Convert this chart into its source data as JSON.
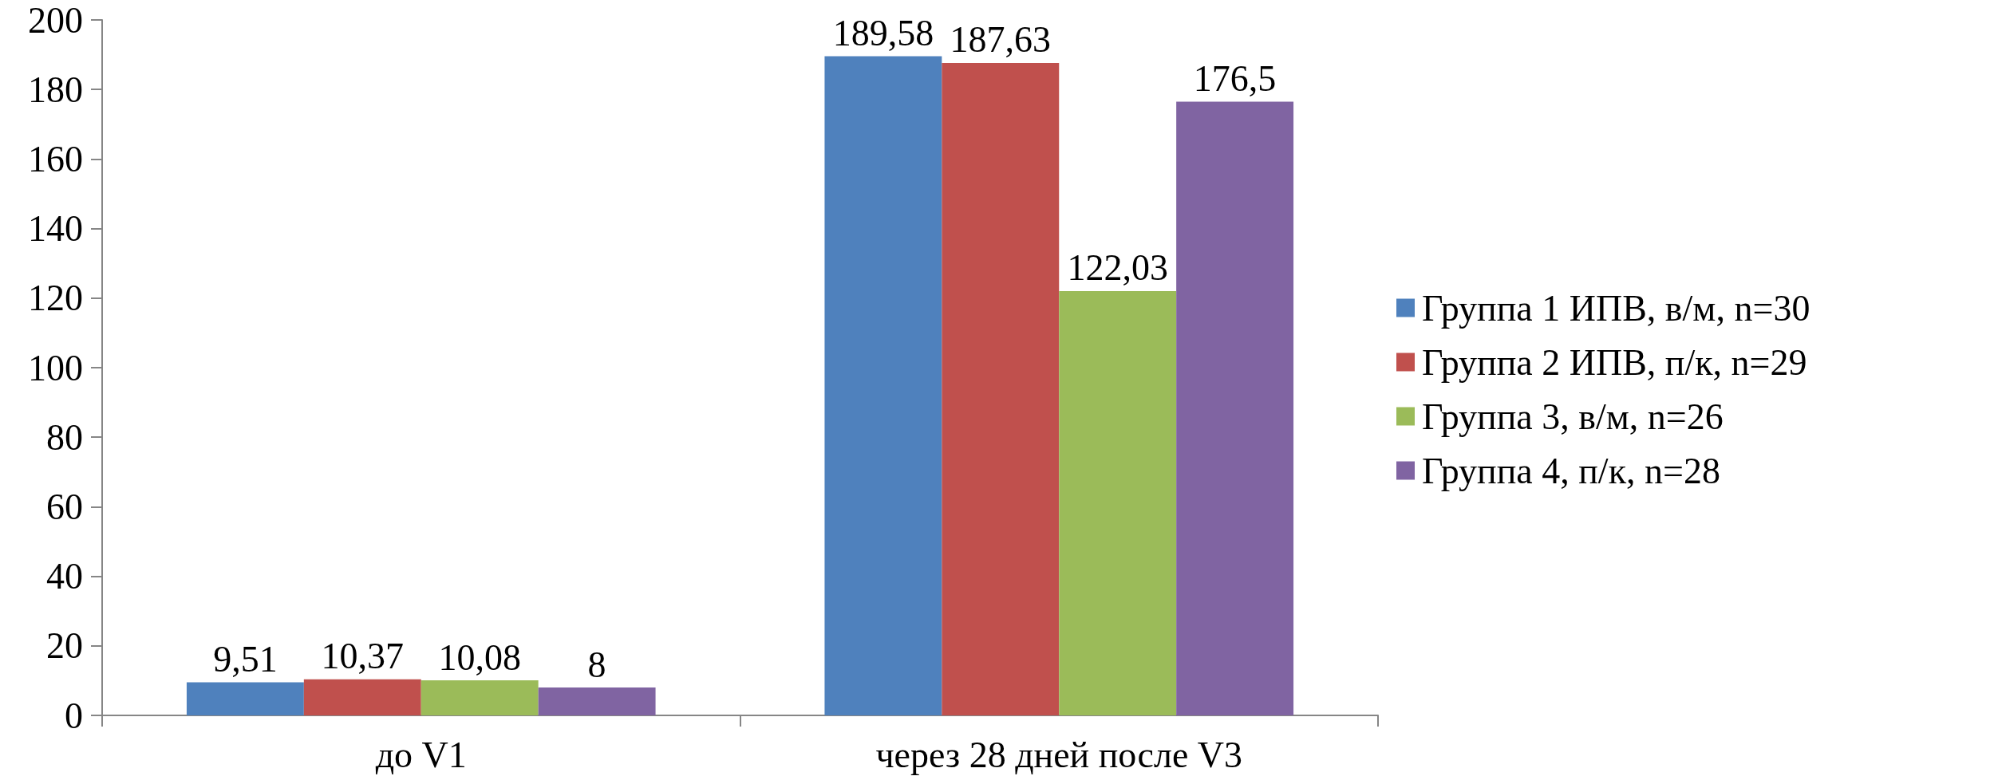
{
  "chart_data": {
    "type": "bar",
    "categories": [
      "до V1",
      "через 28 дней после V3"
    ],
    "series": [
      {
        "name": "Группа 1 ИПВ, в/м, n=30",
        "color": "#4f81bd",
        "values": [
          9.51,
          189.58
        ],
        "value_labels": [
          "9,51",
          "189,58"
        ]
      },
      {
        "name": "Группа 2 ИПВ, п/к, n=29",
        "color": "#c0504d",
        "values": [
          10.37,
          187.63
        ],
        "value_labels": [
          "10,37",
          "187,63"
        ]
      },
      {
        "name": "Группа 3, в/м, n=26",
        "color": "#9bbb59",
        "values": [
          10.08,
          122.03
        ],
        "value_labels": [
          "10,08",
          "122,03"
        ]
      },
      {
        "name": "Группа 4, п/к, n=28",
        "color": "#8064a2",
        "values": [
          8,
          176.5
        ],
        "value_labels": [
          "8",
          "176,5"
        ]
      }
    ],
    "ylim": [
      0,
      200
    ],
    "yticks": [
      0,
      20,
      40,
      60,
      80,
      100,
      120,
      140,
      160,
      180,
      200
    ],
    "legend": "right"
  }
}
